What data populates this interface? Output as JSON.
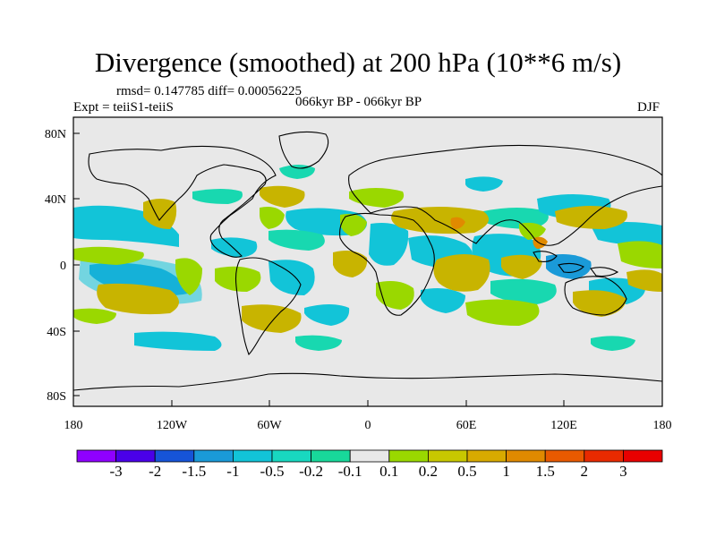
{
  "title": "Divergence (smoothed) at 200 hPa (10**6 m/s)",
  "stats": "rmsd= 0.147785 diff= 0.00056225",
  "experiment": "Expt = teiiS1-teiiS",
  "period": "066kyr BP - 066kyr BP",
  "season": "DJF",
  "axes": {
    "y_ticks": [
      "80N",
      "40N",
      "0",
      "40S",
      "80S"
    ],
    "x_ticks": [
      "180",
      "120W",
      "60W",
      "0",
      "60E",
      "120E",
      "180"
    ]
  },
  "colorbar": {
    "labels": [
      "-3",
      "-2",
      "-1.5",
      "-1",
      "-0.5",
      "-0.2",
      "-0.1",
      "0.1",
      "0.2",
      "0.5",
      "1",
      "1.5",
      "2",
      "3"
    ],
    "colors": [
      "#8f00ff",
      "#4a00e8",
      "#1654d8",
      "#1a9ad8",
      "#12c4d8",
      "#18d8c0",
      "#18d89a",
      "#e8e8e8",
      "#9ad800",
      "#c8c800",
      "#d8aa00",
      "#e08a00",
      "#e85a00",
      "#e82a00",
      "#e80000"
    ]
  },
  "map_colors": {
    "neutral": "#e8e8e8",
    "positive_weak": "#9ad800",
    "positive": "#c8b400",
    "negative_weak": "#18d8b0",
    "negative": "#12c4d8",
    "negative_strong": "#1a9ad8"
  }
}
